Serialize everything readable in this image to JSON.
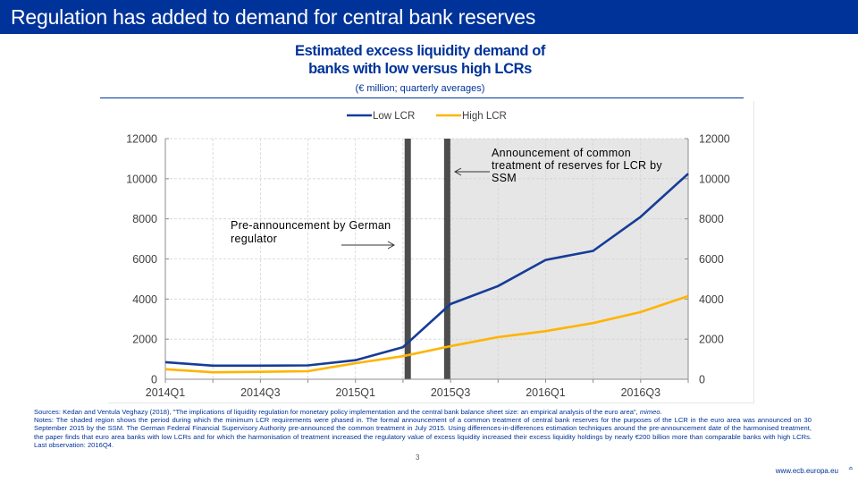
{
  "slide": {
    "title": "Regulation has added to demand for central bank reserves",
    "page_number": "3",
    "footer_url": "www.ecb.europa.eu"
  },
  "chart_header": {
    "title_line1": "Estimated excess liquidity demand of",
    "title_line2": "banks with low versus high LCRs",
    "subtitle": "(€ million; quarterly averages)"
  },
  "chart_data": {
    "type": "line",
    "title": "Estimated excess liquidity demand of banks with low versus high LCRs",
    "subtitle": "(€ million; quarterly averages)",
    "xlabel": "",
    "ylabel": "",
    "categories": [
      "2014Q1",
      "2014Q2",
      "2014Q3",
      "2014Q4",
      "2015Q1",
      "2015Q2",
      "2015Q3",
      "2015Q4",
      "2016Q1",
      "2016Q2",
      "2016Q3",
      "2016Q4"
    ],
    "xtick_labels": [
      "2014Q1",
      "2014Q3",
      "2015Q1",
      "2015Q3",
      "2016Q1",
      "2016Q3"
    ],
    "yticks": [
      "0",
      "2000",
      "4000",
      "6000",
      "8000",
      "10000",
      "12000"
    ],
    "ylim": [
      0,
      12000
    ],
    "secondary_yaxis": true,
    "grid": true,
    "legend_position": "top-center",
    "series": [
      {
        "name": "Low LCR",
        "color": "#163c97",
        "values": [
          850,
          680,
          680,
          690,
          950,
          1600,
          3750,
          4650,
          5950,
          6400,
          8100,
          10250
        ]
      },
      {
        "name": "High LCR",
        "color": "#ffb400",
        "values": [
          500,
          350,
          370,
          400,
          800,
          1150,
          1650,
          2100,
          2400,
          2800,
          3350,
          4150
        ]
      }
    ],
    "shaded_region": {
      "from": "2015Q3",
      "to": "2016Q4",
      "color": "#e6e6e6",
      "meaning": "minimum LCR requirements phased in"
    },
    "vertical_markers": [
      {
        "x_quarter_index": 5.1,
        "event": "July 2015 pre-announcement",
        "color": "#4d4d4d"
      },
      {
        "x_quarter_index": 5.93,
        "event": "30 September 2015 announcement",
        "color": "#4d4d4d"
      }
    ],
    "annotations": [
      {
        "text_line1": "Pre-announcement by German",
        "text_line2": "regulator",
        "arrow": "right"
      },
      {
        "text_line1": "Announcement of common",
        "text_line2": "treatment of reserves for LCR by",
        "text_line3": "SSM",
        "arrow": "left"
      }
    ]
  },
  "footnotes": {
    "sources": "Sources: Kedan and Ventula Veghazy (2018), \"The implications of liquidity regulation for monetary policy implementation and the central bank balance sheet size: an empirical analysis of the euro area\",",
    "sources_italic": "mimeo",
    "sources_end": ".",
    "notes": "Notes: The shaded region shows the period during which the minimum LCR requirements were phased in. The formal announcement of a common treatment of central bank reserves for the purposes of the LCR in the euro area was announced on 30 September 2015 by the SSM. The German Federal Financial Supervisory Authority pre-announced the common treatment in July 2015. Using differences-in-differences estimation techniques around the pre-announcement date of the harmonised treatment, the paper finds that euro area banks with low LCRs and for which the harmonisation of treatment increased the regulatory value of excess liquidity increased their excess liquidity holdings by nearly €200 billion more than comparable banks with high LCRs. Last observation: 2016Q4."
  },
  "icons": {
    "footer_logo": "ecb-logo-icon"
  }
}
